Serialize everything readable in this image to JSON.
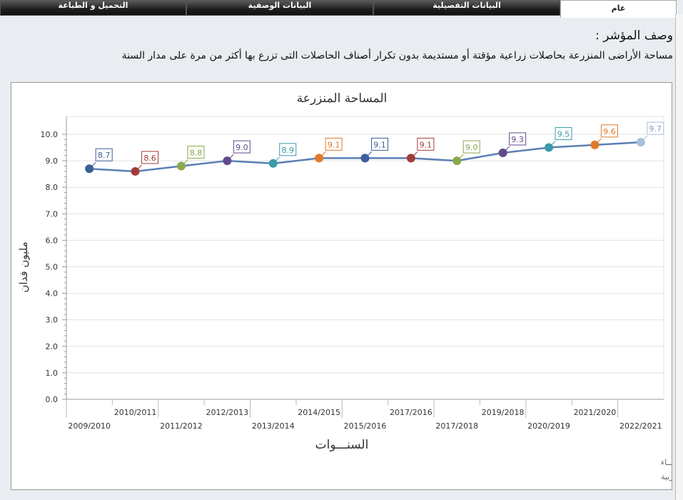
{
  "tabs": [
    {
      "label": "عام",
      "active": true
    },
    {
      "label": "البيانات التفصيلية"
    },
    {
      "label": "البيانات الوصفية"
    },
    {
      "label": "التحميل و الطباعة"
    }
  ],
  "indicator": {
    "title": "وصف المؤشر :",
    "text": "مساحة الأراضى المنزرعة بحاصلات زراعية مؤقتة أو مستديمة بدون تكرار أصناف الحاصلات التى تزرع بها أكثر من مرة على مدار السنة"
  },
  "chart_data": {
    "type": "line",
    "title": "المساحة المنزرعة",
    "xlabel": "السنـــوات",
    "ylabel": "مليون فدان",
    "categories": [
      "2009/2010",
      "2010/2011",
      "2011/2012",
      "2012/2013",
      "2013/2014",
      "2014/2015",
      "2015/2016",
      "2017/2016",
      "2017/2018",
      "2019/2018",
      "2020/2019",
      "2021/2020",
      "2022/2021"
    ],
    "values": [
      8.7,
      8.6,
      8.8,
      9.0,
      8.9,
      9.1,
      9.1,
      9.1,
      9.0,
      9.3,
      9.5,
      9.6,
      9.7
    ],
    "data_labels": [
      "8.7",
      "8.6",
      "8.8",
      "9.0",
      "8.9",
      "9.1",
      "9.1",
      "9.1",
      "9.0",
      "9.3",
      "9.5",
      "9.6",
      "9.7"
    ],
    "point_colors": [
      "#3a5f9a",
      "#a33b3b",
      "#8aa84a",
      "#5f4a8a",
      "#3b99a8",
      "#e07a2a",
      "#3a5f9a",
      "#a33b3b",
      "#8aa84a",
      "#5f4a8a",
      "#3b99a8",
      "#e07a2a",
      "#a9bfdc"
    ],
    "line_color": "#5b7fb5",
    "ylim": [
      0,
      10
    ],
    "yticks": [
      "0.0",
      "1.0",
      "2.0",
      "3.0",
      "4.0",
      "5.0",
      "6.0",
      "7.0",
      "8.0",
      "9.0",
      "10.0"
    ],
    "grid": true,
    "legend": "none"
  },
  "footer": {
    "line1": "حقوق الملكية للجهـــاز المركزي للتعبئة العـامة والأحصـــاء",
    "line2": "المصدر الأساسـى للأحصاءات الرسـمية لجمهورية مصر العربية"
  }
}
